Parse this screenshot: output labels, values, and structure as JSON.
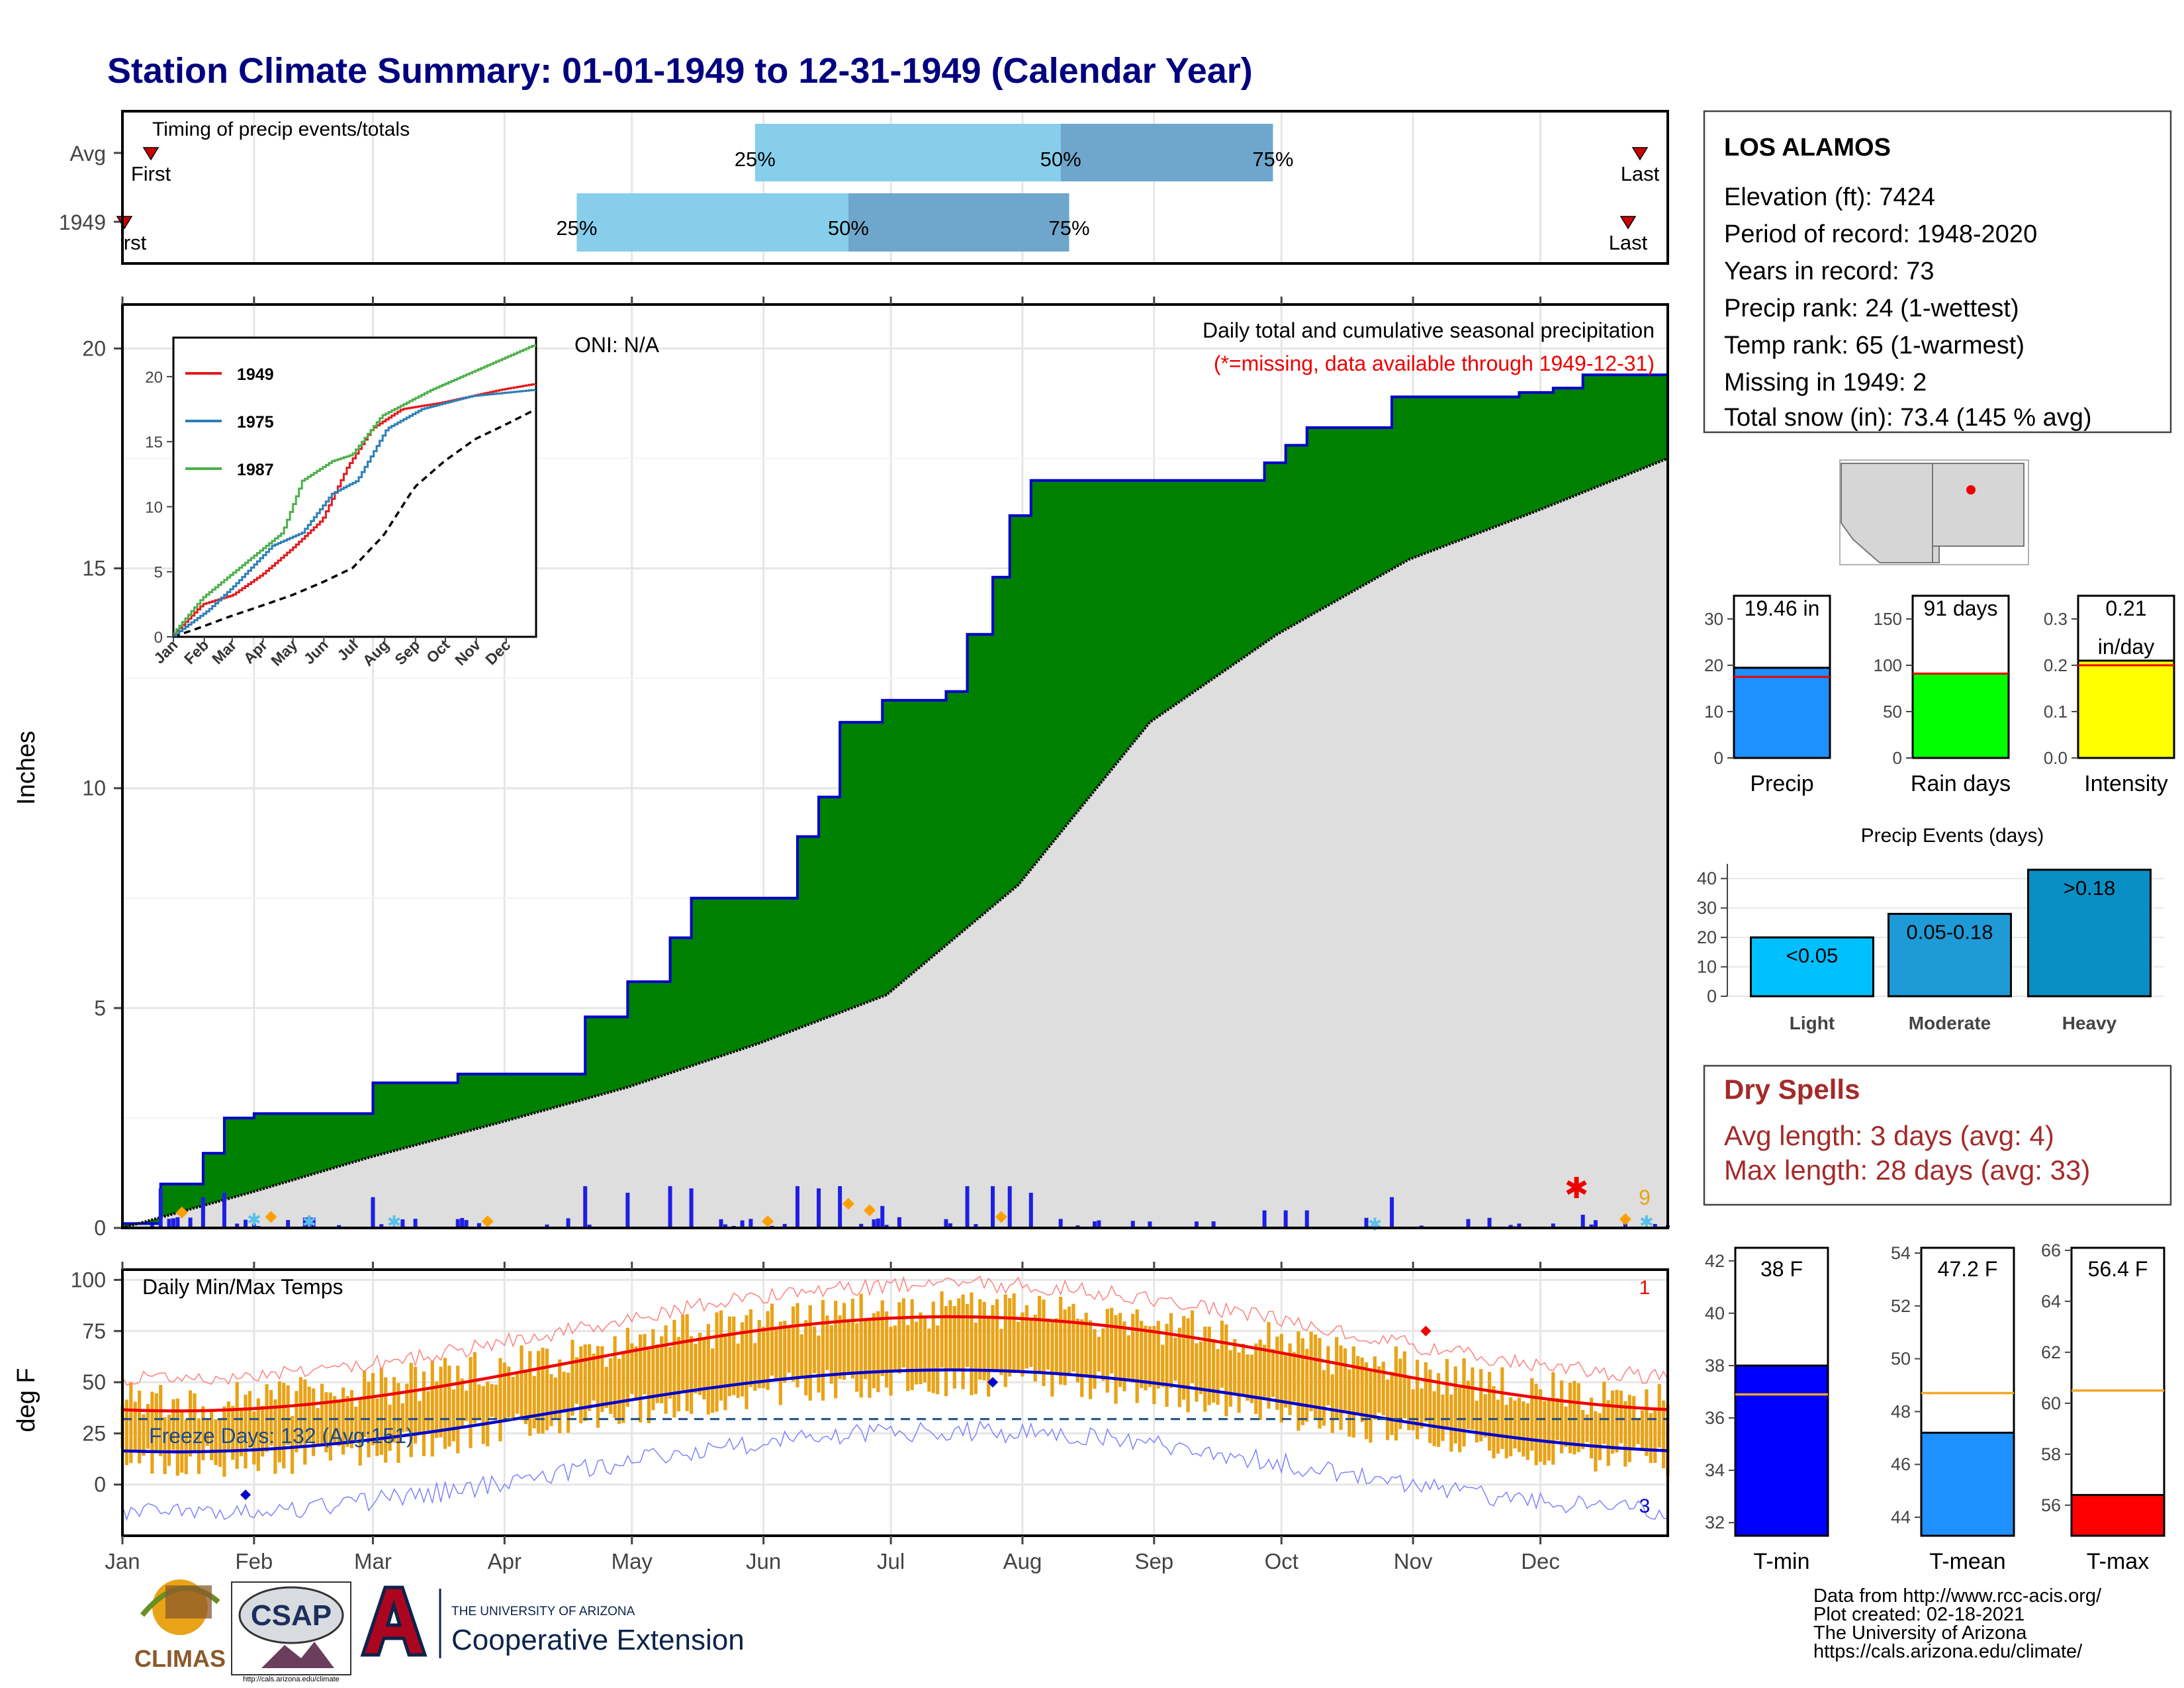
{
  "title": "Station Climate Summary: 01-01-1949 to 12-31-1949 (Calendar Year)",
  "timing": {
    "label": "Timing of precip events/totals",
    "rows": [
      "Avg",
      "1949"
    ],
    "pct_labels": [
      "25%",
      "50%",
      "75%"
    ],
    "first_label": "First",
    "first_label_1949": "rst",
    "last_label": "Last",
    "avg_quantiles_doy": [
      1,
      150,
      222,
      272,
      365
    ],
    "y1949_quantiles_doy": [
      1,
      108,
      172,
      224,
      362
    ],
    "colors": {
      "light": "#87ceeb",
      "dark": "#6fa6cc",
      "marker": "#cc0000"
    }
  },
  "precip_panel": {
    "ylabel": "Inches",
    "yticks": [
      "0",
      "5",
      "10",
      "15",
      "20"
    ],
    "ylim": [
      0,
      21
    ],
    "oni": "ONI: N/A",
    "caption": "Daily total and cumulative seasonal precipitation",
    "missing_note": "(*=missing, data available through 1949-12-31)",
    "missing_count": "9",
    "colors": {
      "above": "#008000",
      "below": "#dedede",
      "line": "#0000cc",
      "bars": "#1e1ee6"
    },
    "inset": {
      "series_labels": [
        "1949",
        "1975",
        "1987"
      ],
      "series_colors": [
        "#e31a1c",
        "#2c7fb8",
        "#4daf4a"
      ],
      "yticks": [
        "0",
        "5",
        "10",
        "15",
        "20"
      ],
      "months": [
        "Jan",
        "Feb",
        "Mar",
        "Apr",
        "May",
        "Jun",
        "Jul",
        "Aug",
        "Sep",
        "Oct",
        "Nov",
        "Dec"
      ]
    }
  },
  "temp_panel": {
    "ylabel": "deg F",
    "label": "Daily Min/Max Temps",
    "freeze": "Freeze Days: 132 (Avg:151)",
    "yticks": [
      "0",
      "25",
      "50",
      "75",
      "100"
    ],
    "max_missing": "1",
    "min_missing": "3",
    "colors": {
      "bars": "#e8a317",
      "avg_max": "#ee0000",
      "avg_min": "#0000cc"
    }
  },
  "months": [
    "Jan",
    "Feb",
    "Mar",
    "Apr",
    "May",
    "Jun",
    "Jul",
    "Aug",
    "Sep",
    "Oct",
    "Nov",
    "Dec"
  ],
  "station": {
    "name": "LOS ALAMOS",
    "lines": [
      "Elevation (ft): 7424",
      "Period of record: 1948-2020",
      "Years in record: 73",
      "Precip rank: 24 (1-wettest)",
      "Temp rank: 65 (1-warmest)",
      "Missing in 1949: 2",
      "Total snow (in): 73.4 (145 % avg)"
    ]
  },
  "mini_bars": [
    {
      "label": "Precip",
      "value_label": "19.46 in",
      "value": 19.46,
      "avg": 17.5,
      "ymax": 35,
      "yticks": [
        "0",
        "10",
        "20",
        "30"
      ],
      "color": "#1e90ff"
    },
    {
      "label": "Rain days",
      "value_label": "91 days",
      "value": 91,
      "avg": 91,
      "ymax": 175,
      "yticks": [
        "0",
        "50",
        "100",
        "150"
      ],
      "color": "#00ff00"
    },
    {
      "label": "Intensity",
      "value_label": "0.21",
      "value_label2": "in/day",
      "value": 0.21,
      "avg": 0.2,
      "ymax": 0.35,
      "yticks": [
        "0.0",
        "0.1",
        "0.2",
        "0.3"
      ],
      "color": "#ffff00"
    }
  ],
  "events": {
    "title": "Precip Events (days)",
    "yticks": [
      "0",
      "10",
      "20",
      "30",
      "40"
    ],
    "categories": [
      "Light",
      "Moderate",
      "Heavy"
    ],
    "bar_labels": [
      "<0.05",
      "0.05-0.18",
      ">0.18"
    ],
    "values": [
      20,
      28,
      43
    ],
    "colors": [
      "#00bfff",
      "#1e9ad6",
      "#0a8fc4"
    ]
  },
  "dry_spells": {
    "title": "Dry Spells",
    "avg": "Avg length: 3 days (avg: 4)",
    "max": "Max length: 28 days (avg: 33)"
  },
  "temp_bars": [
    {
      "label": "T-min",
      "value_label": "38 F",
      "value": 38,
      "avg": 36.9,
      "ymin": 31.5,
      "ymax": 42.5,
      "yticks": [
        "32",
        "34",
        "36",
        "38",
        "40",
        "42"
      ],
      "color": "#0000ff"
    },
    {
      "label": "T-mean",
      "value_label": "47.2 F",
      "value": 47.2,
      "avg": 48.7,
      "ymin": 43.3,
      "ymax": 54.2,
      "yticks": [
        "44",
        "46",
        "48",
        "50",
        "52",
        "54"
      ],
      "color": "#1e90ff"
    },
    {
      "label": "T-max",
      "value_label": "56.4 F",
      "value": 56.4,
      "avg": 60.5,
      "ymin": 54.8,
      "ymax": 66.1,
      "yticks": [
        "56",
        "58",
        "60",
        "62",
        "64",
        "66"
      ],
      "color": "#ff0000"
    }
  ],
  "footer": {
    "lines": [
      "Data from http://www.rcc-acis.org/",
      "Plot created: 02-18-2021",
      "The University of Arizona",
      "https://cals.arizona.edu/climate/"
    ],
    "logo_climas": "CLIMAS",
    "logo_csap": "CSAP",
    "logo_csap_url": "http://cals.arizona.edu/climate",
    "ua_line1": "THE UNIVERSITY OF ARIZONA",
    "ua_line2": "Cooperative Extension"
  },
  "chart_data": {
    "type": "area",
    "title": "Daily total and cumulative seasonal precipitation",
    "ylabel": "Inches",
    "ylim": [
      0,
      21
    ],
    "x_months": [
      "Jan",
      "Feb",
      "Mar",
      "Apr",
      "May",
      "Jun",
      "Jul",
      "Aug",
      "Sep",
      "Oct",
      "Nov",
      "Dec"
    ],
    "series": [
      {
        "name": "1949",
        "cumulative_doy": [
          1,
          10,
          20,
          25,
          32,
          60,
          80,
          110,
          120,
          130,
          135,
          160,
          165,
          170,
          180,
          195,
          200,
          206,
          210,
          215,
          270,
          275,
          280,
          300,
          330,
          338,
          345,
          365
        ],
        "cumulative_in": [
          0.1,
          1.0,
          1.7,
          2.5,
          2.6,
          3.3,
          3.5,
          4.8,
          5.6,
          6.6,
          7.5,
          8.9,
          9.8,
          11.5,
          12.0,
          12.2,
          13.5,
          14.8,
          16.2,
          17.0,
          17.4,
          17.8,
          18.2,
          18.9,
          19.0,
          19.1,
          19.4,
          19.46
        ]
      },
      {
        "name": "Avg",
        "doy": [
          1,
          31,
          59,
          90,
          120,
          151,
          181,
          212,
          243,
          273,
          304,
          334,
          365
        ],
        "cumulative_in": [
          0.0,
          0.8,
          1.6,
          2.4,
          3.2,
          4.2,
          5.3,
          7.8,
          11.5,
          13.5,
          15.2,
          16.3,
          17.5
        ]
      }
    ],
    "temps": {
      "avg_max_peak": 82,
      "avg_min_peak": 56,
      "freeze_line": 32
    }
  }
}
